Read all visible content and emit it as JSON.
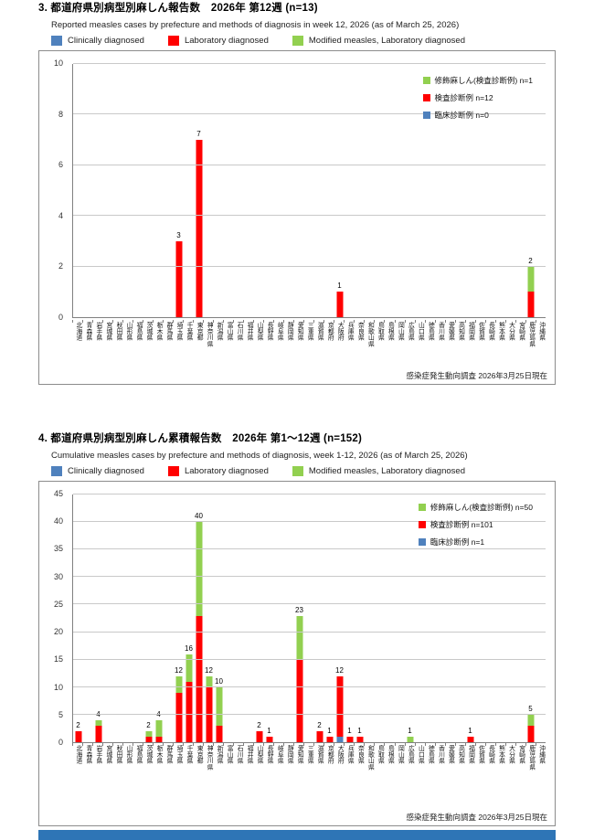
{
  "colors": {
    "clinical": "#4F81BD",
    "laboratory": "#FF0000",
    "modified": "#92D050",
    "footer_band": "#2E75B6"
  },
  "sections": [
    {
      "title": "3. 都道府県別病型別麻しん報告数　2026年 第12週 (n=13)",
      "subtitle": "Reported measles cases by prefecture and methods of diagnosis in week 12, 2026 (as of March 25, 2026)",
      "legend": [
        {
          "label": "Clinically diagnosed",
          "color": "#4F81BD"
        },
        {
          "label": "Laboratory diagnosed",
          "color": "#FF0000"
        },
        {
          "label": "Modified measles, Laboratory diagnosed",
          "color": "#92D050"
        }
      ],
      "inner_legend": [
        {
          "label": "修飾麻しん(検査診断例) n=1",
          "color": "#92D050"
        },
        {
          "label": "検査診断例 n=12",
          "color": "#FF0000"
        },
        {
          "label": "臨床診断例 n=0",
          "color": "#4F81BD"
        }
      ],
      "caption": "感染症発生動向調査 2026年3月25日現在",
      "chart_data": {
        "type": "bar",
        "stacked": true,
        "grid": true,
        "ylim": [
          0,
          10
        ],
        "ystep": 2,
        "legend_position": "inside-top-right",
        "categories": [
          "北海道",
          "青森県",
          "岩手県",
          "宮城県",
          "秋田県",
          "山形県",
          "福島県",
          "茨城県",
          "栃木県",
          "群馬県",
          "埼玉県",
          "千葉県",
          "東京都",
          "神奈川県",
          "新潟県",
          "富山県",
          "石川県",
          "福井県",
          "山梨県",
          "長野県",
          "岐阜県",
          "静岡県",
          "愛知県",
          "三重県",
          "滋賀県",
          "京都府",
          "大阪府",
          "兵庫県",
          "奈良県",
          "和歌山県",
          "鳥取県",
          "島根県",
          "岡山県",
          "広島県",
          "山口県",
          "徳島県",
          "香川県",
          "愛媛県",
          "高知県",
          "福岡県",
          "佐賀県",
          "長崎県",
          "熊本県",
          "大分県",
          "宮崎県",
          "鹿児島県",
          "沖縄県"
        ],
        "series": [
          {
            "name": "臨床診断例 (Clinically diagnosed)",
            "color": "#4F81BD",
            "values": [
              0,
              0,
              0,
              0,
              0,
              0,
              0,
              0,
              0,
              0,
              0,
              0,
              0,
              0,
              0,
              0,
              0,
              0,
              0,
              0,
              0,
              0,
              0,
              0,
              0,
              0,
              0,
              0,
              0,
              0,
              0,
              0,
              0,
              0,
              0,
              0,
              0,
              0,
              0,
              0,
              0,
              0,
              0,
              0,
              0,
              0,
              0
            ]
          },
          {
            "name": "検査診断例 (Laboratory diagnosed)",
            "color": "#FF0000",
            "values": [
              0,
              0,
              0,
              0,
              0,
              0,
              0,
              0,
              0,
              0,
              3,
              0,
              7,
              0,
              0,
              0,
              0,
              0,
              0,
              0,
              0,
              0,
              0,
              0,
              0,
              0,
              1,
              0,
              0,
              0,
              0,
              0,
              0,
              0,
              0,
              0,
              0,
              0,
              0,
              0,
              0,
              0,
              0,
              0,
              0,
              1,
              0
            ]
          },
          {
            "name": "修飾麻しん(検査診断例) (Modified measles, Laboratory diagnosed)",
            "color": "#92D050",
            "values": [
              0,
              0,
              0,
              0,
              0,
              0,
              0,
              0,
              0,
              0,
              0,
              0,
              0,
              0,
              0,
              0,
              0,
              0,
              0,
              0,
              0,
              0,
              0,
              0,
              0,
              0,
              0,
              0,
              0,
              0,
              0,
              0,
              0,
              0,
              0,
              0,
              0,
              0,
              0,
              0,
              0,
              0,
              0,
              0,
              0,
              1,
              0
            ]
          }
        ]
      }
    },
    {
      "title": "4. 都道府県別病型別麻しん累積報告数　2026年 第1～12週 (n=152)",
      "subtitle": "Cumulative measles cases by prefecture and methods of diagnosis, week 1-12, 2026 (as of March 25, 2026)",
      "legend": [
        {
          "label": "Clinically diagnosed",
          "color": "#4F81BD"
        },
        {
          "label": "Laboratory diagnosed",
          "color": "#FF0000"
        },
        {
          "label": "Modified measles, Laboratory diagnosed",
          "color": "#92D050"
        }
      ],
      "inner_legend": [
        {
          "label": "修飾麻しん(検査診断例) n=50",
          "color": "#92D050"
        },
        {
          "label": "検査診断例 n=101",
          "color": "#FF0000"
        },
        {
          "label": "臨床診断例 n=1",
          "color": "#4F81BD"
        }
      ],
      "caption": "感染症発生動向調査 2026年3月25日現在",
      "chart_data": {
        "type": "bar",
        "stacked": true,
        "grid": true,
        "ylim": [
          0,
          45
        ],
        "ystep": 5,
        "legend_position": "inside-top-right",
        "categories": [
          "北海道",
          "青森県",
          "岩手県",
          "宮城県",
          "秋田県",
          "山形県",
          "福島県",
          "茨城県",
          "栃木県",
          "群馬県",
          "埼玉県",
          "千葉県",
          "東京都",
          "神奈川県",
          "新潟県",
          "富山県",
          "石川県",
          "福井県",
          "山梨県",
          "長野県",
          "岐阜県",
          "静岡県",
          "愛知県",
          "三重県",
          "滋賀県",
          "京都府",
          "大阪府",
          "兵庫県",
          "奈良県",
          "和歌山県",
          "鳥取県",
          "島根県",
          "岡山県",
          "広島県",
          "山口県",
          "徳島県",
          "香川県",
          "愛媛県",
          "高知県",
          "福岡県",
          "佐賀県",
          "長崎県",
          "熊本県",
          "大分県",
          "宮崎県",
          "鹿児島県",
          "沖縄県"
        ],
        "series": [
          {
            "name": "臨床診断例 (Clinically diagnosed)",
            "color": "#4F81BD",
            "values": [
              0,
              0,
              0,
              0,
              0,
              0,
              0,
              0,
              0,
              0,
              0,
              0,
              0,
              0,
              0,
              0,
              0,
              0,
              0,
              0,
              0,
              0,
              0,
              0,
              0,
              0,
              1,
              0,
              0,
              0,
              0,
              0,
              0,
              0,
              0,
              0,
              0,
              0,
              0,
              0,
              0,
              0,
              0,
              0,
              0,
              0,
              0
            ]
          },
          {
            "name": "検査診断例 (Laboratory diagnosed)",
            "color": "#FF0000",
            "values": [
              2,
              0,
              3,
              0,
              0,
              0,
              0,
              1,
              1,
              0,
              9,
              11,
              23,
              10,
              3,
              0,
              0,
              0,
              2,
              1,
              0,
              0,
              15,
              0,
              2,
              1,
              11,
              1,
              1,
              0,
              0,
              0,
              0,
              0,
              0,
              0,
              0,
              0,
              0,
              1,
              0,
              0,
              0,
              0,
              0,
              3,
              0
            ]
          },
          {
            "name": "修飾麻しん(検査診断例) (Modified measles, Laboratory diagnosed)",
            "color": "#92D050",
            "values": [
              0,
              0,
              1,
              0,
              0,
              0,
              0,
              1,
              3,
              0,
              3,
              5,
              17,
              2,
              7,
              0,
              0,
              0,
              0,
              0,
              0,
              0,
              8,
              0,
              0,
              0,
              0,
              0,
              0,
              0,
              0,
              0,
              0,
              1,
              0,
              0,
              0,
              0,
              0,
              0,
              0,
              0,
              0,
              0,
              0,
              2,
              0
            ]
          }
        ]
      }
    }
  ]
}
